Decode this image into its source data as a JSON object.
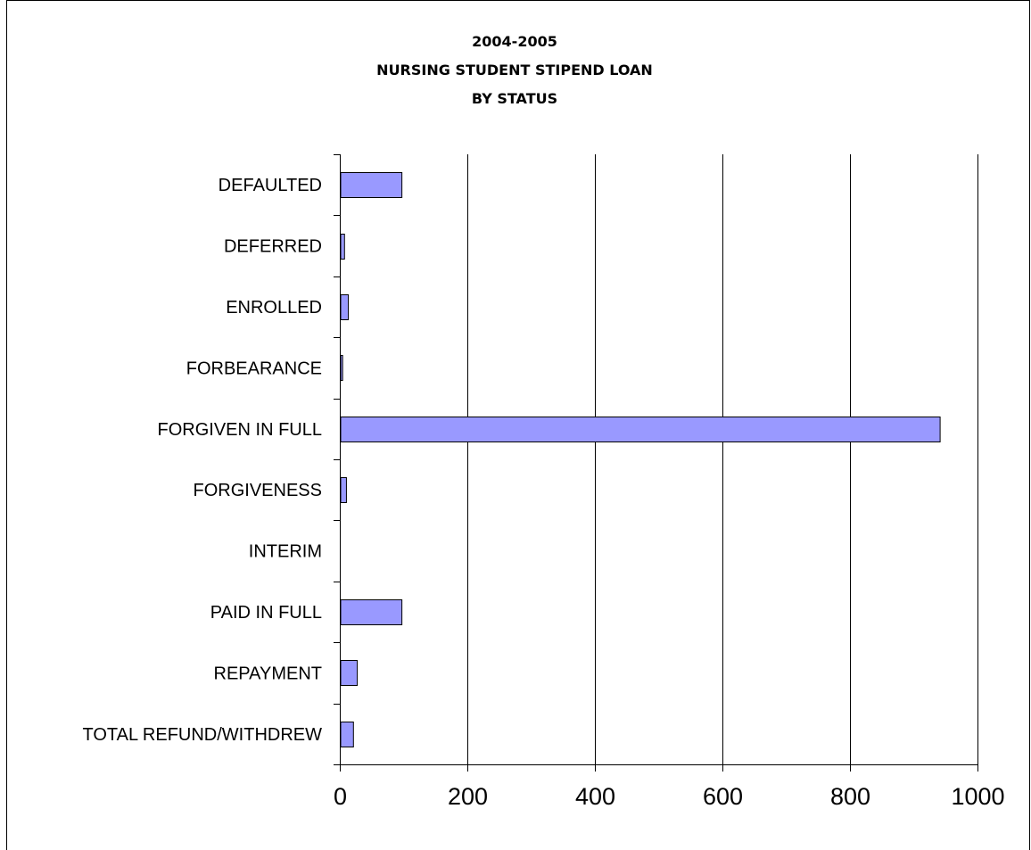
{
  "chart_data": {
    "type": "bar",
    "orientation": "horizontal",
    "title_lines": [
      "2004-2005",
      "NURSING STUDENT STIPEND LOAN",
      "BY STATUS"
    ],
    "categories": [
      "DEFAULTED",
      "DEFERRED",
      "ENROLLED",
      "FORBEARANCE",
      "FORGIVEN IN FULL",
      "FORGIVENESS",
      "INTERIM",
      "PAID IN FULL",
      "REPAYMENT",
      "TOTAL REFUND/WITHDREW"
    ],
    "values": [
      96,
      6,
      12,
      3,
      940,
      9,
      0,
      96,
      26,
      20
    ],
    "xlim": [
      0,
      1000
    ],
    "xticks": [
      "0",
      "200",
      "400",
      "600",
      "800",
      "1000"
    ],
    "xlabel": "",
    "ylabel": "",
    "grid": "vertical",
    "legend": "none",
    "bar_color": "#9999ff"
  }
}
